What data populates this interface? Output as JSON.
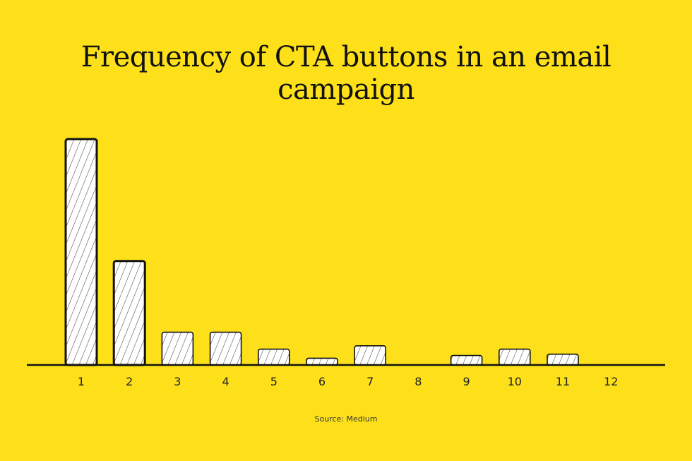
{
  "title_lines": [
    "Frequency of CTA buttons in an email",
    "campaign"
  ],
  "source": "Source: Medium",
  "colors": {
    "background": "#FDE01A",
    "bar_fill": "#FFFFFF",
    "ink": "#111111"
  },
  "chart_data": {
    "type": "bar",
    "title": "Frequency of CTA buttons in an email campaign",
    "categories": [
      "1",
      "2",
      "3",
      "4",
      "5",
      "6",
      "7",
      "8",
      "9",
      "10",
      "11",
      "12"
    ],
    "values": [
      100,
      46,
      14.5,
      14.5,
      7,
      3,
      8.5,
      0,
      4.2,
      7,
      4.8,
      0
    ],
    "xlabel": "",
    "ylabel": "",
    "ylim": [
      0,
      100
    ],
    "grid": false,
    "y_axis_visible": false
  }
}
